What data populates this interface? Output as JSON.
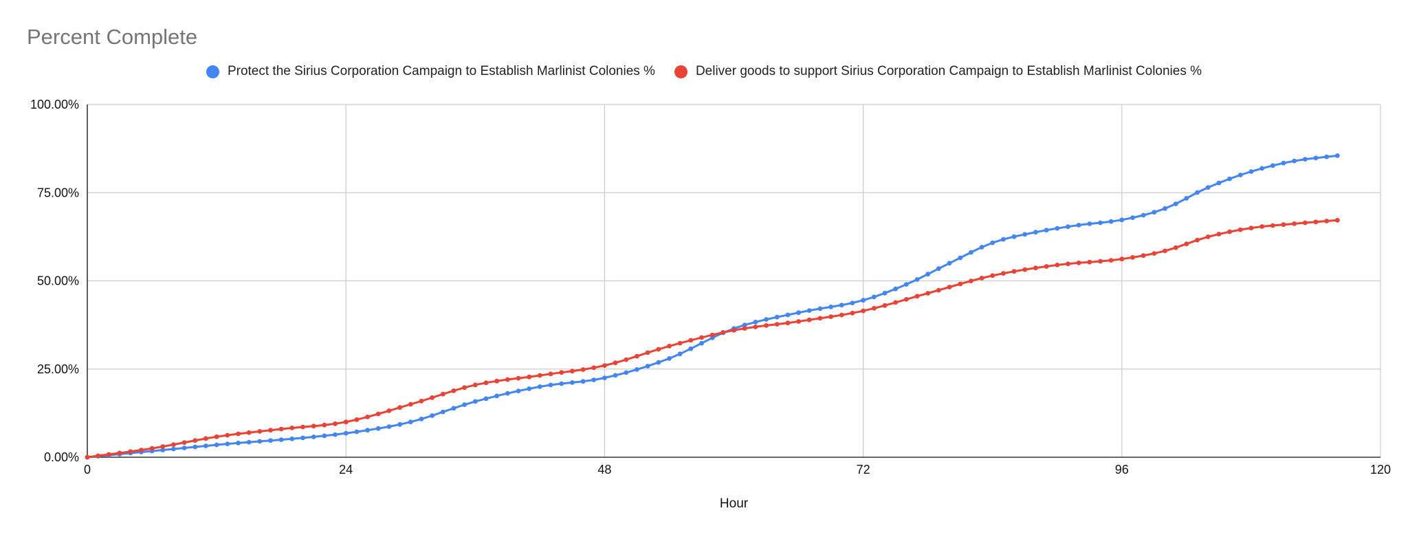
{
  "chart_data": {
    "type": "line",
    "title": "Percent Complete",
    "xlabel": "Hour",
    "ylabel": "",
    "xlim": [
      0,
      120
    ],
    "ylim": [
      0,
      1
    ],
    "x_ticks": [
      0,
      24,
      48,
      72,
      96,
      120
    ],
    "y_ticks": [
      0,
      0.25,
      0.5,
      0.75,
      1.0
    ],
    "y_tick_labels": [
      "0.00%",
      "25.00%",
      "50.00%",
      "75.00%",
      "100.00%"
    ],
    "grid": true,
    "legend_position": "top",
    "markers": true,
    "series": [
      {
        "name": "Protect the Sirius Corporation Campaign to Establish Marlinist Colonies %",
        "color": "#4285f4",
        "points": [
          [
            0,
            0
          ],
          [
            12,
            0.035
          ],
          [
            24,
            0.068
          ],
          [
            30,
            0.1
          ],
          [
            36,
            0.158
          ],
          [
            42,
            0.2
          ],
          [
            48,
            0.225
          ],
          [
            54,
            0.28
          ],
          [
            60,
            0.365
          ],
          [
            66,
            0.41
          ],
          [
            72,
            0.445
          ],
          [
            76,
            0.49
          ],
          [
            80,
            0.55
          ],
          [
            84,
            0.608
          ],
          [
            88,
            0.638
          ],
          [
            92,
            0.658
          ],
          [
            96,
            0.673
          ],
          [
            100,
            0.705
          ],
          [
            104,
            0.765
          ],
          [
            108,
            0.81
          ],
          [
            112,
            0.84
          ],
          [
            116,
            0.855
          ]
        ]
      },
      {
        "name": "Deliver goods to support Sirius Corporation Campaign to Establish Marlinist Colonies %",
        "color": "#ea4335",
        "points": [
          [
            0,
            0
          ],
          [
            6,
            0.025
          ],
          [
            12,
            0.058
          ],
          [
            18,
            0.08
          ],
          [
            24,
            0.1
          ],
          [
            30,
            0.15
          ],
          [
            36,
            0.205
          ],
          [
            42,
            0.232
          ],
          [
            48,
            0.26
          ],
          [
            54,
            0.315
          ],
          [
            60,
            0.36
          ],
          [
            66,
            0.385
          ],
          [
            72,
            0.415
          ],
          [
            78,
            0.465
          ],
          [
            84,
            0.515
          ],
          [
            90,
            0.545
          ],
          [
            96,
            0.562
          ],
          [
            100,
            0.585
          ],
          [
            104,
            0.625
          ],
          [
            108,
            0.65
          ],
          [
            112,
            0.662
          ],
          [
            116,
            0.672
          ]
        ]
      }
    ]
  }
}
